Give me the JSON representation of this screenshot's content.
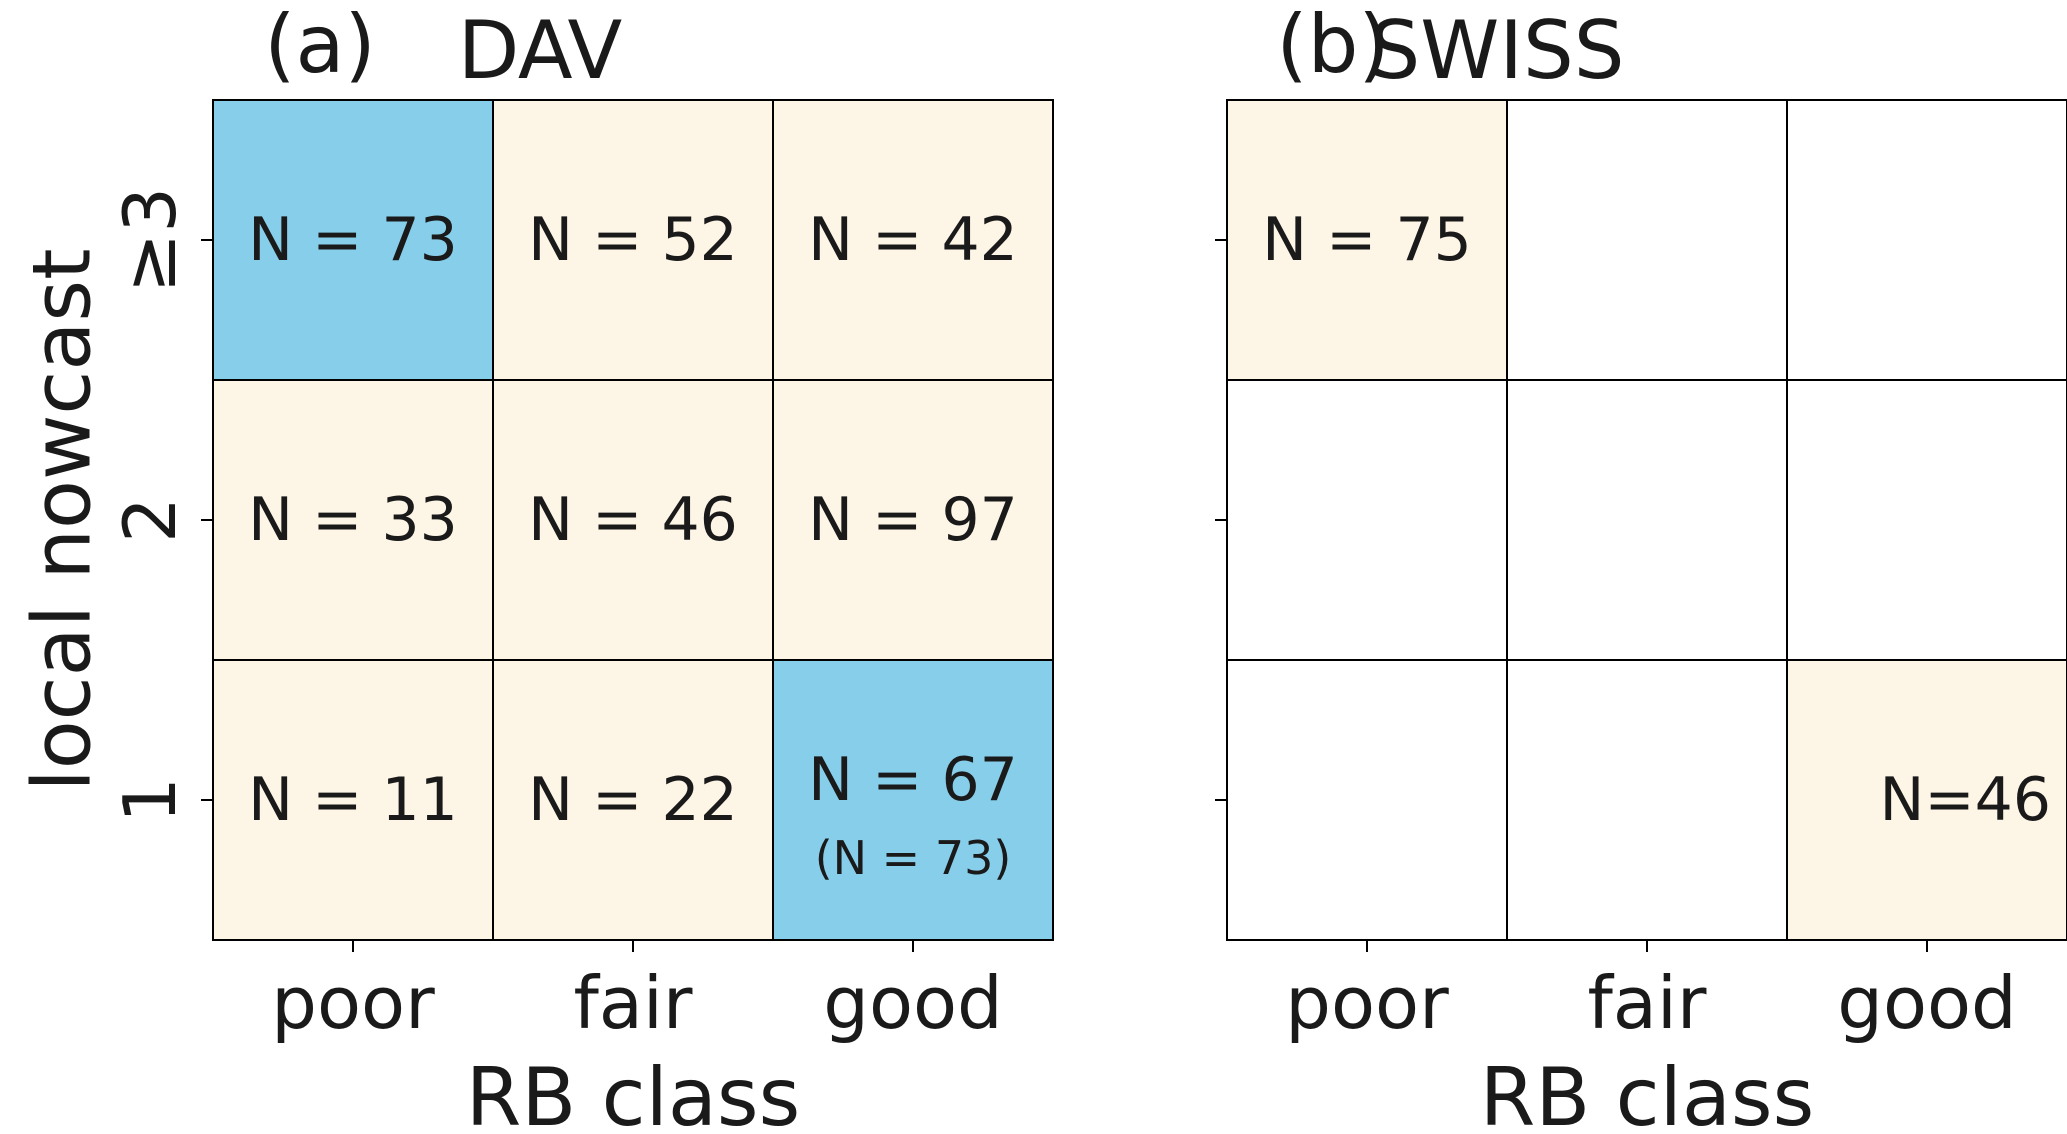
{
  "chart_data": [
    {
      "type": "heatmap",
      "panel_label": "(a)",
      "title": "DAV",
      "xlabel": "RB class",
      "ylabel": "local nowcast",
      "x_categories": [
        "poor",
        "fair",
        "good"
      ],
      "y_categories": [
        "≥3",
        "2",
        "1"
      ],
      "colors": {
        "highlight": "#87ceeb",
        "normal": "#fdf5e6",
        "grid": "#000000"
      },
      "cells": [
        {
          "row": 0,
          "col": 0,
          "label": "N = 73",
          "highlight": true
        },
        {
          "row": 0,
          "col": 1,
          "label": "N = 52",
          "highlight": false
        },
        {
          "row": 0,
          "col": 2,
          "label": "N = 42",
          "highlight": false
        },
        {
          "row": 1,
          "col": 0,
          "label": "N = 33",
          "highlight": false
        },
        {
          "row": 1,
          "col": 1,
          "label": "N = 46",
          "highlight": false
        },
        {
          "row": 1,
          "col": 2,
          "label": "N = 97",
          "highlight": false
        },
        {
          "row": 2,
          "col": 0,
          "label": "N = 11",
          "highlight": false
        },
        {
          "row": 2,
          "col": 1,
          "label": "N = 22",
          "highlight": false
        },
        {
          "row": 2,
          "col": 2,
          "label": "N = 67",
          "sublabel": "(N = 73)",
          "highlight": true
        }
      ]
    },
    {
      "type": "heatmap",
      "panel_label": "(b)",
      "title": "SWISS",
      "xlabel": "RB class",
      "ylabel": "",
      "x_categories": [
        "poor",
        "fair",
        "good"
      ],
      "y_categories": [
        "≥3",
        "2",
        "1"
      ],
      "colors": {
        "normal": "#fdf5e6",
        "empty": "#ffffff",
        "grid": "#000000"
      },
      "cells": [
        {
          "row": 0,
          "col": 0,
          "label": "N = 75",
          "highlight": false
        },
        {
          "row": 0,
          "col": 1,
          "label": "",
          "empty": true
        },
        {
          "row": 0,
          "col": 2,
          "label": "",
          "empty": true
        },
        {
          "row": 1,
          "col": 0,
          "label": "",
          "empty": true
        },
        {
          "row": 1,
          "col": 1,
          "label": "",
          "empty": true
        },
        {
          "row": 1,
          "col": 2,
          "label": "",
          "empty": true
        },
        {
          "row": 2,
          "col": 0,
          "label": "",
          "empty": true
        },
        {
          "row": 2,
          "col": 1,
          "label": "",
          "empty": true
        },
        {
          "row": 2,
          "col": 2,
          "label": "N=46",
          "align": "right",
          "highlight": false
        }
      ]
    }
  ]
}
